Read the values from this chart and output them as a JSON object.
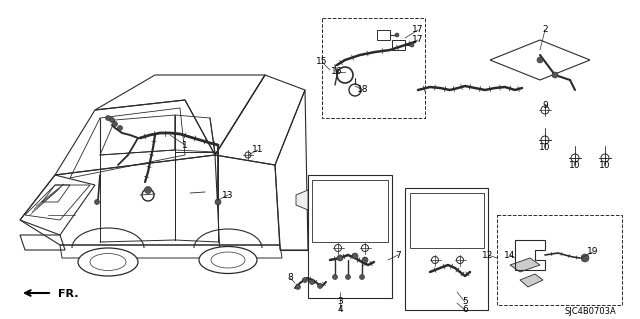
{
  "bg_color": "#ffffff",
  "fig_width": 6.4,
  "fig_height": 3.19,
  "dpi": 100,
  "line_color": "#2a2a2a",
  "text_color": "#000000",
  "label_fontsize": 6.5,
  "code_fontsize": 6.0,
  "part_code": "SJC4B0703A",
  "fr_text": "FR."
}
